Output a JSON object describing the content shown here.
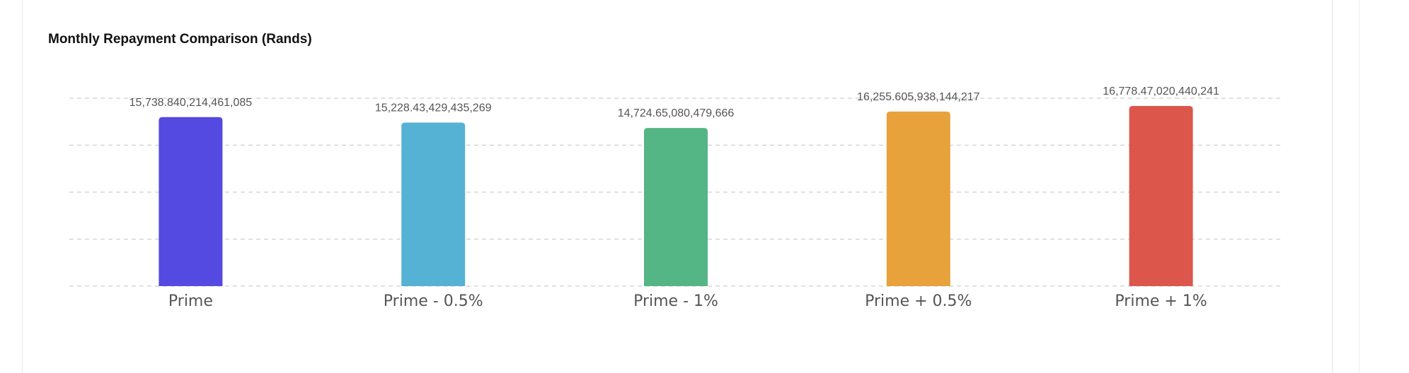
{
  "chart_data": {
    "type": "bar",
    "title": "Monthly Repayment Comparison (Rands)",
    "categories": [
      "Prime",
      "Prime - 0.5%",
      "Prime - 1%",
      "Prime + 0.5%",
      "Prime + 1%"
    ],
    "values": [
      15738.84,
      15228.43,
      14724.65,
      16255.61,
      16778.47
    ],
    "value_labels": [
      "15,738.840,214,461,085",
      "15,228.43,429,435,269",
      "14,724.65,080,479,666",
      "16,255.605,938,144,217",
      "16,778.47,020,440,241"
    ],
    "colors": [
      "#5449e0",
      "#56b2d4",
      "#54b585",
      "#e7a23b",
      "#dc564b"
    ],
    "ylim": [
      0,
      17500
    ],
    "yticks": [
      0,
      4375,
      8750,
      13125,
      17500
    ],
    "grid": true,
    "legend": false,
    "xlabel": "",
    "ylabel": ""
  }
}
